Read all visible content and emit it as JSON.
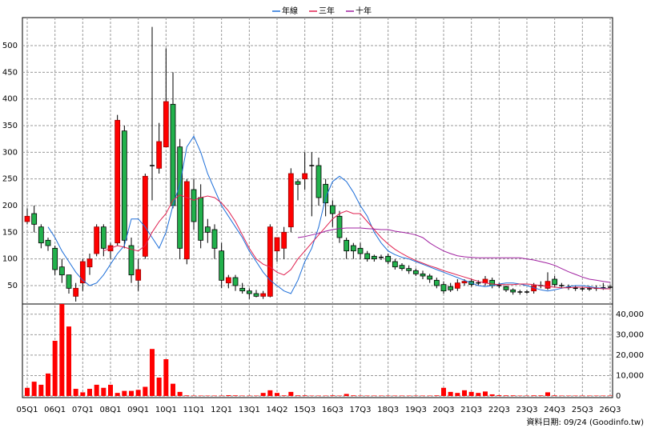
{
  "chart_data": {
    "type": "candlestick",
    "legend": [
      {
        "name": "年線",
        "color": "#1e6fd9"
      },
      {
        "name": "三年",
        "color": "#e0204f"
      },
      {
        "name": "十年",
        "color": "#a020a0"
      }
    ],
    "categories": [
      "05Q1",
      null,
      null,
      null,
      "06Q1",
      null,
      null,
      null,
      "07Q1",
      null,
      null,
      null,
      "08Q1",
      null,
      null,
      null,
      "09Q1",
      null,
      null,
      null,
      "10Q1",
      null,
      null,
      null,
      "11Q1",
      null,
      null,
      null,
      "12Q1",
      null,
      null,
      null,
      "13Q1",
      null,
      null,
      null,
      "14Q2",
      null,
      null,
      null,
      "15Q3",
      null,
      null,
      null,
      "16Q3",
      null,
      null,
      null,
      "17Q3",
      null,
      null,
      null,
      "18Q3",
      null,
      null,
      null,
      "19Q3",
      null,
      null,
      null,
      "20Q3",
      null,
      null,
      null,
      "21Q3",
      null,
      null,
      null,
      "22Q3",
      null,
      null,
      null,
      "23Q3",
      null,
      null,
      null,
      "24Q3",
      null,
      null,
      null,
      "25Q3",
      null,
      null,
      null,
      "26Q3"
    ],
    "up_color": "#ff0000",
    "down_color": "#22b14c",
    "open": [
      170,
      185,
      160,
      135,
      120,
      85,
      70,
      30,
      55,
      85,
      110,
      160,
      115,
      130,
      340,
      125,
      60,
      105,
      275,
      270,
      310,
      390,
      310,
      100,
      230,
      215,
      160,
      155,
      115,
      55,
      65,
      45,
      40,
      35,
      30,
      30,
      115,
      120,
      160,
      245,
      250,
      275,
      275,
      240,
      200,
      180,
      135,
      125,
      120,
      110,
      105,
      103,
      105,
      95,
      88,
      82,
      78,
      72,
      68,
      60,
      52,
      48,
      45,
      55,
      58,
      55,
      55,
      60,
      50,
      48,
      42,
      38,
      38,
      40,
      50,
      45,
      62,
      50,
      47,
      45,
      44,
      44,
      45,
      46,
      47
    ],
    "high": [
      195,
      200,
      165,
      140,
      125,
      100,
      70,
      55,
      100,
      110,
      165,
      165,
      130,
      370,
      350,
      140,
      100,
      260,
      535,
      355,
      495,
      450,
      325,
      250,
      250,
      240,
      175,
      165,
      130,
      70,
      70,
      55,
      45,
      42,
      40,
      165,
      140,
      160,
      270,
      250,
      300,
      300,
      290,
      250,
      210,
      190,
      140,
      130,
      130,
      115,
      108,
      108,
      110,
      100,
      92,
      88,
      82,
      78,
      72,
      65,
      58,
      55,
      62,
      62,
      62,
      60,
      68,
      65,
      55,
      50,
      45,
      42,
      42,
      55,
      58,
      75,
      68,
      55,
      52,
      50,
      48,
      48,
      50,
      55,
      52
    ],
    "low": [
      165,
      150,
      120,
      115,
      70,
      55,
      35,
      20,
      40,
      70,
      105,
      105,
      100,
      125,
      120,
      55,
      40,
      100,
      210,
      260,
      310,
      195,
      100,
      90,
      155,
      120,
      130,
      100,
      45,
      45,
      40,
      35,
      25,
      28,
      25,
      28,
      95,
      100,
      150,
      210,
      230,
      180,
      200,
      180,
      160,
      130,
      100,
      100,
      100,
      95,
      95,
      98,
      90,
      80,
      78,
      72,
      68,
      62,
      55,
      45,
      35,
      38,
      40,
      50,
      48,
      50,
      50,
      45,
      45,
      38,
      33,
      33,
      35,
      35,
      45,
      42,
      48,
      45,
      42,
      40,
      40,
      40,
      40,
      42,
      43
    ],
    "close": [
      180,
      165,
      130,
      125,
      80,
      70,
      45,
      45,
      95,
      100,
      160,
      120,
      125,
      360,
      135,
      70,
      80,
      255,
      275,
      320,
      395,
      200,
      120,
      245,
      170,
      135,
      150,
      120,
      60,
      65,
      50,
      40,
      35,
      30,
      35,
      160,
      140,
      150,
      260,
      240,
      260,
      275,
      215,
      205,
      185,
      140,
      115,
      115,
      110,
      100,
      100,
      103,
      95,
      85,
      82,
      78,
      72,
      68,
      62,
      50,
      40,
      42,
      55,
      58,
      52,
      55,
      62,
      50,
      50,
      42,
      38,
      38,
      38,
      50,
      50,
      58,
      52,
      50,
      47,
      45,
      44,
      44,
      45,
      46,
      47
    ],
    "series": [
      {
        "name": "年線",
        "color": "#1e6fd9",
        "values": [
          null,
          null,
          null,
          160,
          140,
          115,
          95,
          75,
          60,
          50,
          55,
          70,
          90,
          110,
          125,
          175,
          175,
          160,
          140,
          120,
          150,
          200,
          240,
          310,
          330,
          300,
          260,
          230,
          200,
          180,
          160,
          140,
          115,
          95,
          75,
          60,
          50,
          40,
          35,
          60,
          95,
          120,
          160,
          215,
          245,
          255,
          245,
          225,
          200,
          180,
          150,
          130,
          115,
          108,
          103,
          100,
          95,
          90,
          85,
          80,
          75,
          70,
          65,
          60,
          55,
          50,
          48,
          50,
          53,
          55,
          55,
          53,
          50,
          46,
          42,
          40,
          42,
          45,
          48,
          50,
          50,
          48,
          46,
          45,
          44
        ]
      },
      {
        "name": "三年",
        "color": "#e0204f",
        "values": [
          null,
          null,
          null,
          null,
          null,
          null,
          null,
          null,
          null,
          null,
          null,
          115,
          120,
          125,
          122,
          118,
          115,
          125,
          150,
          170,
          185,
          210,
          220,
          215,
          210,
          215,
          218,
          215,
          205,
          190,
          170,
          145,
          120,
          100,
          90,
          85,
          75,
          70,
          80,
          100,
          115,
          130,
          145,
          160,
          175,
          185,
          190,
          185,
          185,
          170,
          155,
          140,
          128,
          118,
          110,
          103,
          97,
          92,
          87,
          83,
          78,
          74,
          70,
          66,
          62,
          58,
          55,
          53,
          52,
          52,
          52,
          53,
          53,
          52,
          50,
          48,
          47,
          46,
          46,
          47,
          47,
          46,
          45,
          44,
          44
        ]
      },
      {
        "name": "十年",
        "color": "#a020a0",
        "values": [
          null,
          null,
          null,
          null,
          null,
          null,
          null,
          null,
          null,
          null,
          null,
          null,
          null,
          null,
          null,
          null,
          null,
          null,
          null,
          null,
          null,
          null,
          null,
          null,
          null,
          null,
          null,
          null,
          null,
          null,
          null,
          null,
          null,
          null,
          null,
          null,
          null,
          null,
          null,
          140,
          142,
          145,
          148,
          152,
          155,
          157,
          158,
          158,
          158,
          157,
          156,
          155,
          155,
          152,
          150,
          148,
          145,
          140,
          130,
          122,
          115,
          110,
          106,
          104,
          103,
          102,
          102,
          102,
          102,
          102,
          102,
          102,
          100,
          98,
          95,
          92,
          88,
          82,
          76,
          71,
          66,
          62,
          60,
          58,
          56
        ]
      }
    ],
    "ylim": [
      15.5,
      552.5
    ],
    "yticks": [
      50,
      100,
      150,
      200,
      250,
      300,
      350,
      400,
      450,
      500
    ],
    "volume": {
      "color": "#ff0000",
      "values": [
        4000,
        7000,
        5500,
        11000,
        27000,
        45000,
        34000,
        3500,
        1800,
        3500,
        5500,
        4000,
        5500,
        1500,
        2500,
        2500,
        3000,
        4500,
        23000,
        9000,
        18000,
        6000,
        2000,
        300,
        200,
        200,
        200,
        200,
        200,
        400,
        300,
        200,
        200,
        200,
        1500,
        2800,
        1500,
        300,
        2000,
        300,
        300,
        200,
        200,
        200,
        300,
        200,
        1000,
        300,
        200,
        200,
        200,
        200,
        200,
        200,
        200,
        200,
        200,
        200,
        200,
        300,
        4000,
        2000,
        1500,
        2800,
        2000,
        1500,
        2200,
        800,
        400,
        300,
        300,
        200,
        200,
        300,
        300,
        1800,
        300,
        200,
        200,
        200,
        200,
        200,
        200,
        200,
        200
      ],
      "ylim": [
        0,
        45000
      ],
      "yticks": [
        0,
        {
          "value": 10000,
          "label": "10,000"
        },
        {
          "value": 20000,
          "label": "20,000"
        },
        {
          "value": 30000,
          "label": "30,000"
        },
        {
          "value": 40000,
          "label": "40,000"
        }
      ]
    },
    "grid": true,
    "source": "資料日期: 09/24  (Goodinfo.tw)"
  }
}
